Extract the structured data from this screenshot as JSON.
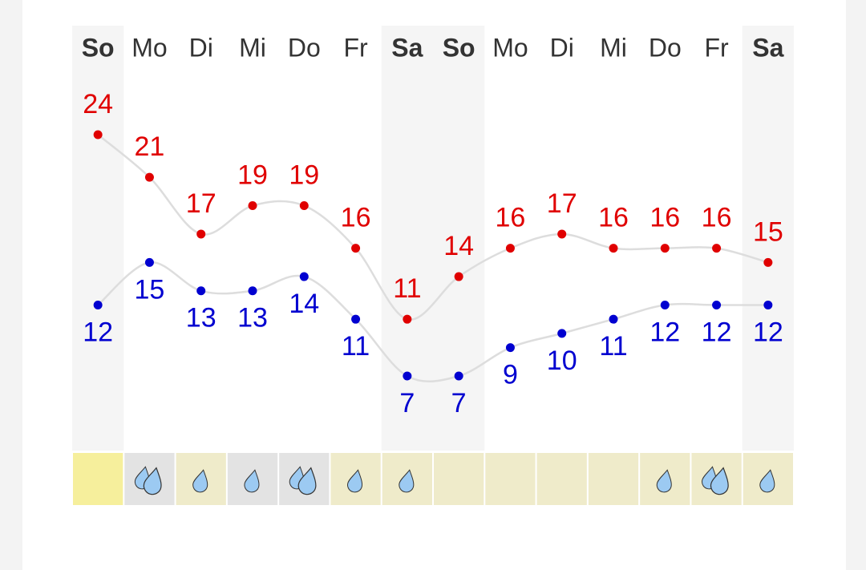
{
  "chart_data": {
    "type": "line",
    "categories": [
      "So",
      "Mo",
      "Di",
      "Mi",
      "Do",
      "Fr",
      "Sa",
      "So",
      "Mo",
      "Di",
      "Mi",
      "Do",
      "Fr",
      "Sa"
    ],
    "series": [
      {
        "color": "#e00000",
        "values": [
          24,
          21,
          17,
          19,
          19,
          16,
          11,
          14,
          16,
          17,
          16,
          16,
          16,
          15
        ]
      },
      {
        "color": "#0000d0",
        "values": [
          12,
          15,
          13,
          13,
          14,
          11,
          7,
          7,
          9,
          10,
          11,
          12,
          12,
          12
        ]
      }
    ]
  }
}
